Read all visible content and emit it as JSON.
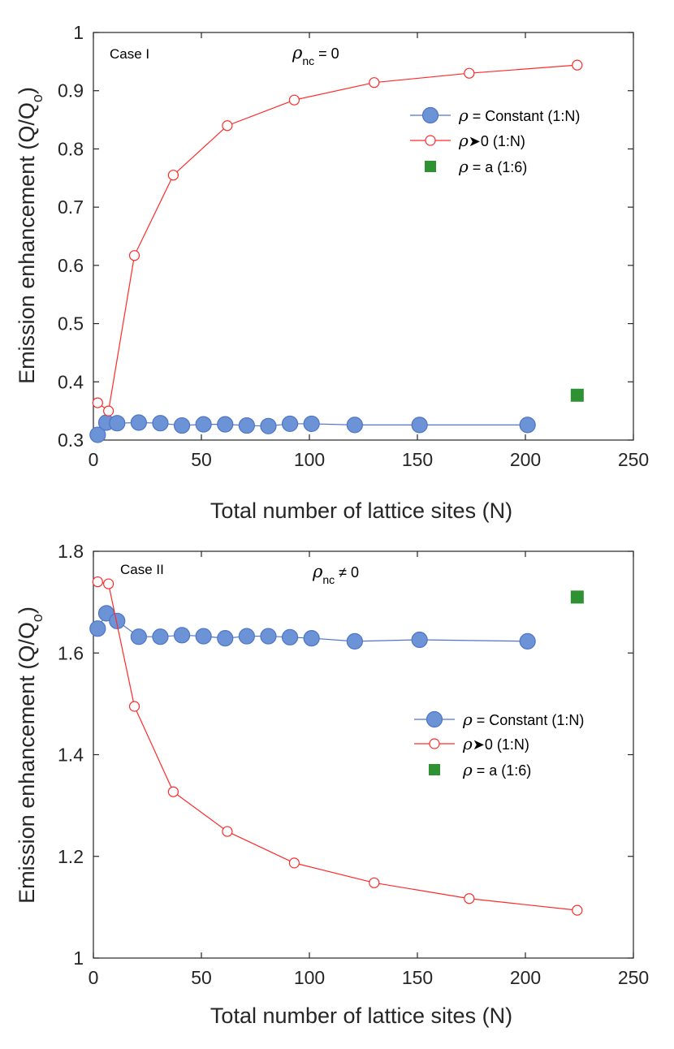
{
  "chart_data": [
    {
      "type": "line",
      "annotation": "Case I",
      "condition": {
        "symbol": "ρ",
        "sub": "nc",
        "relation": "= 0"
      },
      "xlabel": "Total number of lattice sites (N)",
      "ylabel": {
        "main": "Emission enhancement (Q/Q",
        "sub": "o",
        "end": ")"
      },
      "xlim": [
        0,
        250
      ],
      "ylim": [
        0.3,
        1
      ],
      "xticks": [
        "0",
        "50",
        "100",
        "150",
        "200",
        "250"
      ],
      "yticks": [
        "0.3",
        "0.4",
        "0.5",
        "0.6",
        "0.7",
        "0.8",
        "0.9",
        "1"
      ],
      "legend_position": "upper-right",
      "series": [
        {
          "name": "ρ = Constant (1:N)",
          "label_rest": " = Constant (1:N)",
          "color": "#4f74c8",
          "fill": "#6b93d6",
          "marker": "filled-circle",
          "x": [
            2,
            6,
            11,
            21,
            31,
            41,
            51,
            61,
            71,
            81,
            91,
            101,
            121,
            151,
            201
          ],
          "y": [
            0.309,
            0.33,
            0.329,
            0.33,
            0.329,
            0.325,
            0.327,
            0.327,
            0.325,
            0.324,
            0.328,
            0.328,
            0.326,
            0.326,
            0.326
          ]
        },
        {
          "name": "ρ➤0 (1:N)",
          "label_rest": "➤0 (1:N)",
          "color": "#ff2a2a",
          "marker": "open-circle",
          "x": [
            2,
            7,
            19,
            37,
            62,
            93,
            130,
            174,
            224
          ],
          "y": [
            0.364,
            0.35,
            0.617,
            0.755,
            0.84,
            0.884,
            0.914,
            0.93,
            0.944
          ]
        },
        {
          "name": "ρ = a (1:6)",
          "label_rest": " = a (1:6)",
          "color": "#2e9132",
          "marker": "square",
          "x": [
            224
          ],
          "y": [
            0.377
          ]
        }
      ]
    },
    {
      "type": "line",
      "annotation": "Case II",
      "condition": {
        "symbol": "ρ",
        "sub": "nc",
        "relation": "≠ 0"
      },
      "xlabel": "Total number of lattice sites (N)",
      "ylabel": {
        "main": "Emission enhancement (Q/Q",
        "sub": "o",
        "end": ")"
      },
      "xlim": [
        0,
        250
      ],
      "ylim": [
        1,
        1.8
      ],
      "xticks": [
        "0",
        "50",
        "100",
        "150",
        "200",
        "250"
      ],
      "yticks": [
        "1",
        "1.2",
        "1.4",
        "1.6",
        "1.8"
      ],
      "legend_position": "center-right",
      "series": [
        {
          "name": "ρ = Constant (1:N)",
          "label_rest": " = Constant (1:N)",
          "color": "#4f74c8",
          "fill": "#6b93d6",
          "marker": "filled-circle",
          "x": [
            2,
            6,
            11,
            21,
            31,
            41,
            51,
            61,
            71,
            81,
            91,
            101,
            121,
            151,
            201
          ],
          "y": [
            1.648,
            1.678,
            1.663,
            1.632,
            1.632,
            1.635,
            1.633,
            1.629,
            1.633,
            1.633,
            1.631,
            1.629,
            1.623,
            1.626,
            1.623
          ]
        },
        {
          "name": "ρ➤0 (1:N)",
          "label_rest": "➤0 (1:N)",
          "color": "#ff2a2a",
          "marker": "open-circle",
          "x": [
            2,
            7,
            19,
            37,
            62,
            93,
            130,
            174,
            224
          ],
          "y": [
            1.74,
            1.736,
            1.495,
            1.327,
            1.249,
            1.187,
            1.148,
            1.117,
            1.094
          ]
        },
        {
          "name": "ρ = a (1:6)",
          "label_rest": " = a (1:6)",
          "color": "#2e9132",
          "marker": "square",
          "x": [
            224
          ],
          "y": [
            1.71
          ]
        }
      ]
    }
  ]
}
